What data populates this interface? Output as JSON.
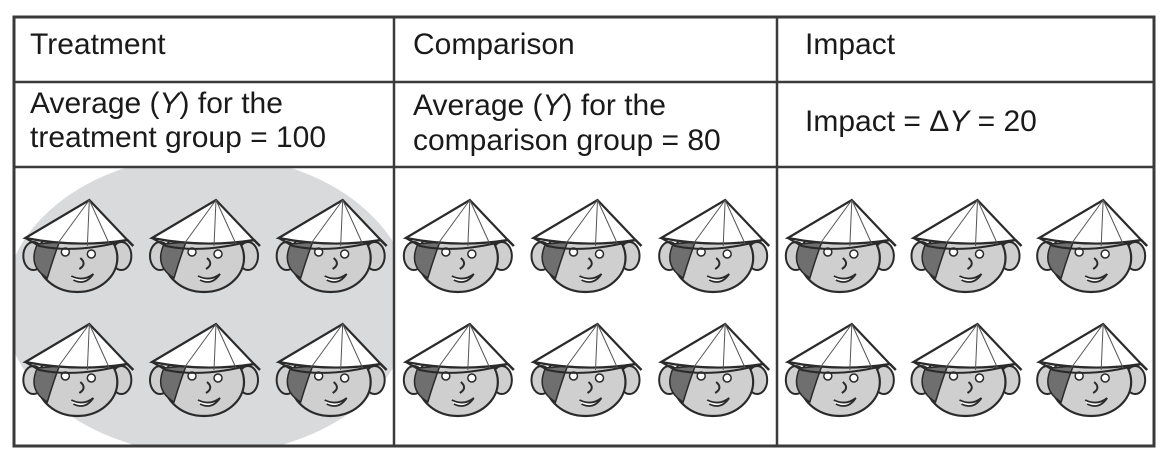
{
  "columns": [
    {
      "header": "Treatment",
      "average": {
        "line1": {
          "pre": "Average (",
          "var": "Y",
          "post": ") for the"
        },
        "line2": "treatment group = 100"
      },
      "highlighted": true,
      "face_count": 6
    },
    {
      "header": "Comparison",
      "average": {
        "line1": {
          "pre": "Average (",
          "var": "Y",
          "post": ") for the"
        },
        "line2": "comparison group = 80"
      },
      "highlighted": false,
      "face_count": 6
    },
    {
      "header": "Impact",
      "impact": {
        "pre": "Impact = Δ",
        "var": "Y",
        "post": " = 20"
      },
      "highlighted": false,
      "face_count": 6
    }
  ],
  "colors": {
    "border": "#3a3a3a",
    "highlight": "#d9dadc",
    "face": "#cfcfcf",
    "hair": "#6f6f6f",
    "hat": "#ffffff",
    "outline": "#2a2a2a"
  },
  "icons": {
    "face": "person-conical-hat-icon"
  }
}
